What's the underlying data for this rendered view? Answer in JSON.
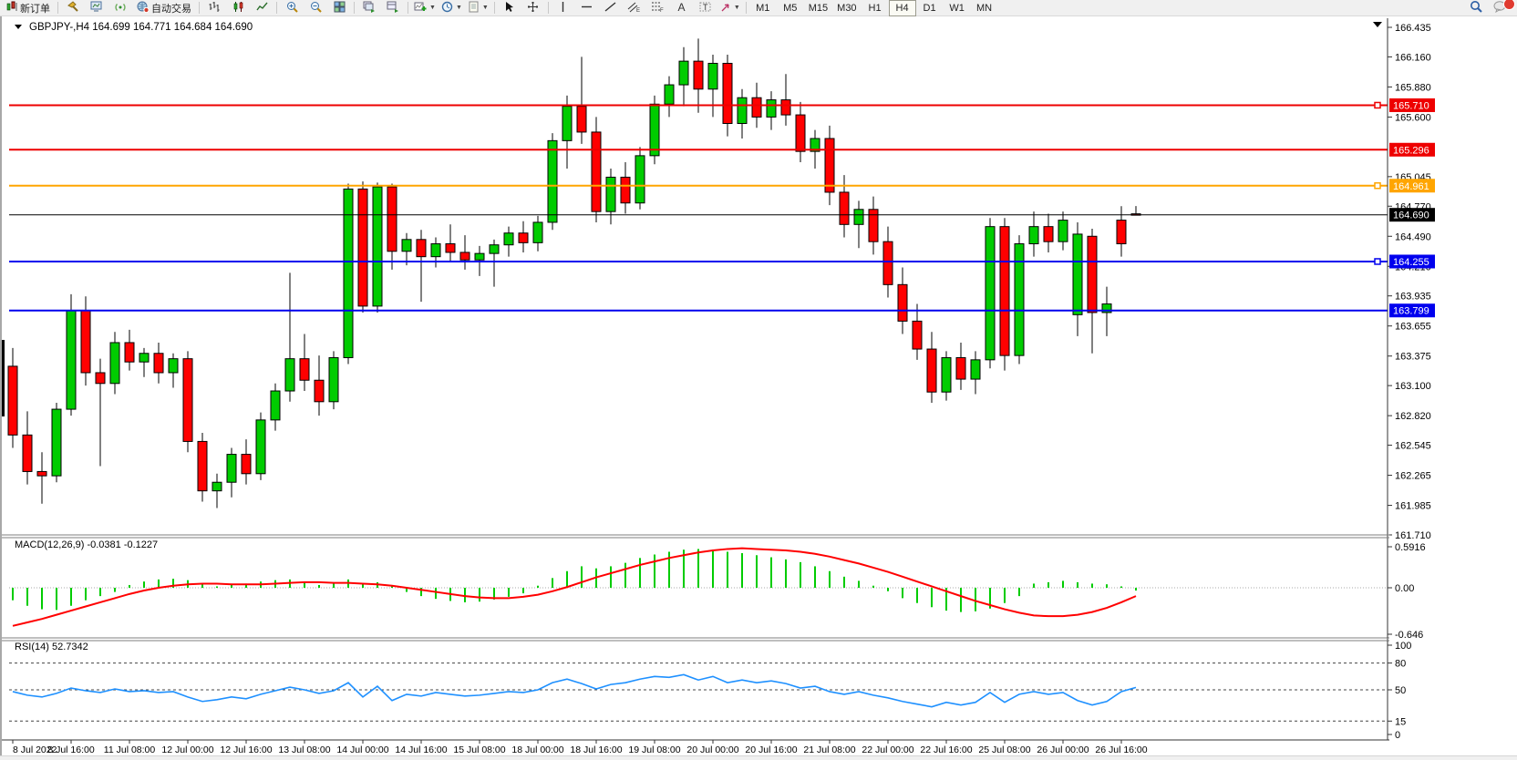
{
  "toolbar": {
    "new_order_label": "新订单",
    "autotrading_label": "自动交易",
    "notification_count": "1",
    "groups": [
      [
        {
          "name": "new-order-button",
          "icon": "new-order",
          "label": "新订单"
        }
      ],
      [
        {
          "name": "tools-button",
          "icon": "hammer"
        },
        {
          "name": "market-watch-button",
          "icon": "monitor"
        },
        {
          "name": "signals-button",
          "icon": "signal"
        },
        {
          "name": "autotrading-button",
          "icon": "globe",
          "label": "自动交易"
        }
      ],
      [
        {
          "name": "bar-chart-button",
          "icon": "bars"
        },
        {
          "name": "candlestick-chart-button",
          "icon": "candles"
        },
        {
          "name": "line-chart-button",
          "icon": "linechart"
        }
      ],
      [
        {
          "name": "zoom-in-button",
          "icon": "zoom-in"
        },
        {
          "name": "zoom-out-button",
          "icon": "zoom-out"
        },
        {
          "name": "tile-windows-button",
          "icon": "tile"
        }
      ],
      [
        {
          "name": "cascade-windows-button",
          "icon": "cascade"
        },
        {
          "name": "arrange-windows-button",
          "icon": "arrange"
        }
      ],
      [
        {
          "name": "indicators-button",
          "icon": "chart-add",
          "caret": true
        },
        {
          "name": "periods-button",
          "icon": "clock",
          "caret": true
        },
        {
          "name": "templates-button",
          "icon": "template",
          "caret": true
        }
      ],
      [
        {
          "name": "cursor-button",
          "icon": "cursor"
        },
        {
          "name": "crosshair-button",
          "icon": "crosshair"
        }
      ],
      [
        {
          "name": "vertical-line-button",
          "icon": "vline"
        },
        {
          "name": "horizontal-line-button",
          "icon": "hline"
        },
        {
          "name": "trendline-button",
          "icon": "trend"
        },
        {
          "name": "equidistant-channel-button",
          "icon": "channel"
        },
        {
          "name": "fibonacci-button",
          "icon": "fibo"
        },
        {
          "name": "text-button",
          "icon": "textA"
        },
        {
          "name": "text-label-button",
          "icon": "labelT"
        },
        {
          "name": "arrows-button",
          "icon": "arrows",
          "caret": true
        }
      ]
    ],
    "timeframes": [
      "M1",
      "M5",
      "M15",
      "M30",
      "H1",
      "H4",
      "D1",
      "W1",
      "MN"
    ],
    "active_timeframe": "H4"
  },
  "chart": {
    "title": "GBPJPY-,H4",
    "ohlc_text": "164.699 164.771 164.684 164.690"
  },
  "chart_data": {
    "type": "candlestick",
    "symbol": "GBPJPY-",
    "timeframe": "H4",
    "last_ohlc": {
      "open": 164.699,
      "high": 164.771,
      "low": 164.684,
      "close": 164.69
    },
    "price_axis": {
      "top_price": 166.435,
      "bottom_price": 161.71,
      "tick_labels": [
        "166.435",
        "166.160",
        "165.880",
        "165.600",
        "165.045",
        "164.770",
        "164.490",
        "164.210",
        "163.935",
        "163.655",
        "163.375",
        "163.100",
        "162.820",
        "162.545",
        "162.265",
        "161.985",
        "161.710"
      ]
    },
    "hlines": [
      {
        "price": 165.71,
        "label": "165.710",
        "color": "#ee0000",
        "handle": true
      },
      {
        "price": 165.296,
        "label": "165.296",
        "color": "#ee0000",
        "handle": false
      },
      {
        "price": 164.961,
        "label": "164.961",
        "color": "#ffa500",
        "handle": true
      },
      {
        "price": 164.69,
        "label": "164.690",
        "color": "#000000",
        "handle": false
      },
      {
        "price": 164.255,
        "label": "164.255",
        "color": "#0000ee",
        "handle": true
      },
      {
        "price": 163.799,
        "label": "163.799",
        "color": "#0000ee",
        "handle": false
      }
    ],
    "x_labels": [
      "8 Jul 2022",
      "8 Jul 16:00",
      "11 Jul 08:00",
      "12 Jul 00:00",
      "12 Jul 16:00",
      "13 Jul 08:00",
      "14 Jul 00:00",
      "14 Jul 16:00",
      "15 Jul 08:00",
      "18 Jul 00:00",
      "18 Jul 16:00",
      "19 Jul 08:00",
      "20 Jul 00:00",
      "20 Jul 16:00",
      "21 Jul 08:00",
      "22 Jul 00:00",
      "22 Jul 16:00",
      "25 Jul 08:00",
      "26 Jul 00:00",
      "26 Jul 16:00"
    ],
    "candles": [
      [
        163.28,
        163.45,
        162.52,
        162.64
      ],
      [
        162.64,
        162.86,
        162.18,
        162.3
      ],
      [
        162.3,
        162.48,
        162.0,
        162.26
      ],
      [
        162.26,
        162.94,
        162.2,
        162.88
      ],
      [
        162.88,
        163.95,
        162.82,
        163.8
      ],
      [
        163.8,
        163.93,
        163.1,
        163.22
      ],
      [
        163.22,
        163.35,
        162.35,
        163.12
      ],
      [
        163.12,
        163.6,
        163.02,
        163.5
      ],
      [
        163.5,
        163.62,
        163.24,
        163.32
      ],
      [
        163.32,
        163.45,
        163.18,
        163.4
      ],
      [
        163.4,
        163.5,
        163.12,
        163.22
      ],
      [
        163.22,
        163.4,
        163.08,
        163.35
      ],
      [
        163.35,
        163.42,
        162.48,
        162.58
      ],
      [
        162.58,
        162.66,
        162.02,
        162.12
      ],
      [
        162.12,
        162.28,
        161.96,
        162.2
      ],
      [
        162.2,
        162.52,
        162.06,
        162.46
      ],
      [
        162.46,
        162.6,
        162.18,
        162.28
      ],
      [
        162.28,
        162.85,
        162.22,
        162.78
      ],
      [
        162.78,
        163.12,
        162.68,
        163.05
      ],
      [
        163.05,
        164.15,
        162.95,
        163.35
      ],
      [
        163.35,
        163.58,
        163.05,
        163.15
      ],
      [
        163.15,
        163.38,
        162.82,
        162.95
      ],
      [
        162.95,
        163.42,
        162.88,
        163.36
      ],
      [
        163.36,
        164.98,
        163.3,
        164.93
      ],
      [
        164.93,
        165.0,
        163.78,
        163.84
      ],
      [
        163.84,
        164.99,
        163.78,
        164.95
      ],
      [
        164.95,
        164.98,
        164.18,
        164.35
      ],
      [
        164.35,
        164.52,
        164.22,
        164.46
      ],
      [
        164.46,
        164.55,
        163.88,
        164.3
      ],
      [
        164.3,
        164.48,
        164.2,
        164.42
      ],
      [
        164.42,
        164.6,
        164.26,
        164.34
      ],
      [
        164.34,
        164.5,
        164.18,
        164.27
      ],
      [
        164.27,
        164.4,
        164.12,
        164.33
      ],
      [
        164.33,
        164.46,
        164.02,
        164.41
      ],
      [
        164.41,
        164.58,
        164.3,
        164.52
      ],
      [
        164.52,
        164.63,
        164.34,
        164.43
      ],
      [
        164.43,
        164.68,
        164.35,
        164.62
      ],
      [
        164.62,
        165.45,
        164.55,
        165.38
      ],
      [
        165.38,
        165.8,
        165.12,
        165.7
      ],
      [
        165.7,
        166.16,
        165.35,
        165.46
      ],
      [
        165.46,
        165.6,
        164.62,
        164.72
      ],
      [
        164.72,
        165.12,
        164.6,
        165.04
      ],
      [
        165.04,
        165.18,
        164.7,
        164.8
      ],
      [
        164.8,
        165.32,
        164.74,
        165.24
      ],
      [
        165.24,
        165.8,
        165.16,
        165.72
      ],
      [
        165.72,
        165.98,
        165.6,
        165.9
      ],
      [
        165.9,
        166.25,
        165.7,
        166.12
      ],
      [
        166.12,
        166.33,
        165.64,
        165.86
      ],
      [
        165.86,
        166.18,
        165.6,
        166.1
      ],
      [
        166.1,
        166.18,
        165.42,
        165.54
      ],
      [
        165.54,
        165.86,
        165.4,
        165.78
      ],
      [
        165.78,
        165.92,
        165.5,
        165.6
      ],
      [
        165.6,
        165.84,
        165.48,
        165.76
      ],
      [
        165.76,
        166.0,
        165.52,
        165.62
      ],
      [
        165.62,
        165.74,
        165.18,
        165.28
      ],
      [
        165.28,
        165.48,
        165.12,
        165.4
      ],
      [
        165.4,
        165.52,
        164.78,
        164.9
      ],
      [
        164.9,
        165.06,
        164.48,
        164.6
      ],
      [
        164.6,
        164.82,
        164.38,
        164.74
      ],
      [
        164.74,
        164.86,
        164.32,
        164.44
      ],
      [
        164.44,
        164.58,
        163.92,
        164.04
      ],
      [
        164.04,
        164.2,
        163.58,
        163.7
      ],
      [
        163.7,
        163.86,
        163.34,
        163.44
      ],
      [
        163.44,
        163.6,
        162.94,
        163.04
      ],
      [
        163.04,
        163.42,
        162.96,
        163.36
      ],
      [
        163.36,
        163.5,
        163.06,
        163.16
      ],
      [
        163.16,
        163.42,
        163.02,
        163.34
      ],
      [
        163.34,
        164.66,
        163.26,
        164.58
      ],
      [
        164.58,
        164.66,
        163.24,
        163.38
      ],
      [
        163.38,
        164.5,
        163.3,
        164.42
      ],
      [
        164.42,
        164.72,
        164.3,
        164.58
      ],
      [
        164.58,
        164.7,
        164.34,
        164.44
      ],
      [
        164.44,
        164.72,
        164.36,
        164.64
      ],
      [
        163.76,
        164.62,
        163.56,
        164.51
      ],
      [
        164.49,
        164.56,
        163.4,
        163.78
      ],
      [
        163.78,
        164.02,
        163.56,
        163.86
      ],
      [
        164.64,
        164.77,
        164.3,
        164.42
      ],
      [
        164.699,
        164.771,
        164.684,
        164.69
      ]
    ],
    "macd": {
      "label": "MACD(12,26,9)",
      "value_macd": "-0.0381",
      "value_signal": "-0.1227",
      "axis_labels": [
        "0.5916",
        "0.00",
        "-0.646"
      ],
      "ymax": 0.5916,
      "ymin": -0.646,
      "histogram": [
        -0.18,
        -0.26,
        -0.31,
        -0.32,
        -0.26,
        -0.18,
        -0.12,
        -0.06,
        0.04,
        0.09,
        0.12,
        0.13,
        0.11,
        0.06,
        0.02,
        0.04,
        0.06,
        0.09,
        0.11,
        0.12,
        0.08,
        0.04,
        0.06,
        0.12,
        0.06,
        0.08,
        0.02,
        -0.06,
        -0.12,
        -0.16,
        -0.19,
        -0.21,
        -0.2,
        -0.17,
        -0.13,
        -0.08,
        0.03,
        0.14,
        0.24,
        0.31,
        0.28,
        0.31,
        0.36,
        0.43,
        0.48,
        0.52,
        0.55,
        0.56,
        0.55,
        0.52,
        0.5,
        0.47,
        0.44,
        0.41,
        0.37,
        0.31,
        0.24,
        0.16,
        0.1,
        0.03,
        -0.05,
        -0.15,
        -0.22,
        -0.28,
        -0.33,
        -0.35,
        -0.34,
        -0.3,
        -0.22,
        -0.12,
        0.06,
        0.08,
        0.1,
        0.08,
        0.06,
        0.05,
        0.02,
        -0.04
      ],
      "signal": [
        -0.55,
        -0.5,
        -0.45,
        -0.39,
        -0.33,
        -0.27,
        -0.21,
        -0.15,
        -0.09,
        -0.04,
        0.0,
        0.03,
        0.05,
        0.06,
        0.06,
        0.05,
        0.05,
        0.05,
        0.06,
        0.07,
        0.08,
        0.08,
        0.07,
        0.07,
        0.06,
        0.05,
        0.03,
        0.0,
        -0.03,
        -0.06,
        -0.09,
        -0.12,
        -0.14,
        -0.15,
        -0.15,
        -0.13,
        -0.1,
        -0.05,
        0.01,
        0.08,
        0.15,
        0.21,
        0.27,
        0.33,
        0.38,
        0.43,
        0.47,
        0.51,
        0.54,
        0.56,
        0.57,
        0.56,
        0.55,
        0.54,
        0.52,
        0.49,
        0.45,
        0.4,
        0.35,
        0.29,
        0.23,
        0.16,
        0.09,
        0.02,
        -0.05,
        -0.12,
        -0.19,
        -0.25,
        -0.31,
        -0.36,
        -0.4,
        -0.41,
        -0.41,
        -0.39,
        -0.35,
        -0.29,
        -0.21,
        -0.12
      ]
    },
    "rsi": {
      "label": "RSI(14)",
      "value": "52.7342",
      "axis_labels": [
        "100",
        "80",
        "50",
        "15",
        "0"
      ],
      "levels": [
        80,
        50,
        15
      ],
      "values": [
        48,
        44,
        42,
        46,
        52,
        49,
        47,
        51,
        48,
        49,
        47,
        48,
        42,
        37,
        39,
        42,
        40,
        45,
        49,
        53,
        50,
        46,
        49,
        58,
        42,
        54,
        38,
        45,
        43,
        47,
        45,
        43,
        44,
        46,
        48,
        47,
        50,
        58,
        62,
        57,
        51,
        56,
        58,
        62,
        65,
        64,
        67,
        61,
        65,
        58,
        61,
        58,
        60,
        57,
        52,
        54,
        48,
        45,
        48,
        44,
        41,
        37,
        34,
        31,
        36,
        33,
        36,
        47,
        36,
        45,
        48,
        45,
        47,
        38,
        33,
        37,
        48,
        52.7
      ]
    },
    "colors": {
      "bull": "#00cc00",
      "bear": "#ff0000",
      "wick": "#000000",
      "macd_histogram": "#00cc00",
      "macd_signal": "#ff0000",
      "rsi_line": "#1e90ff",
      "axis_text": "#000000",
      "badge_text": "#ffffff"
    }
  }
}
